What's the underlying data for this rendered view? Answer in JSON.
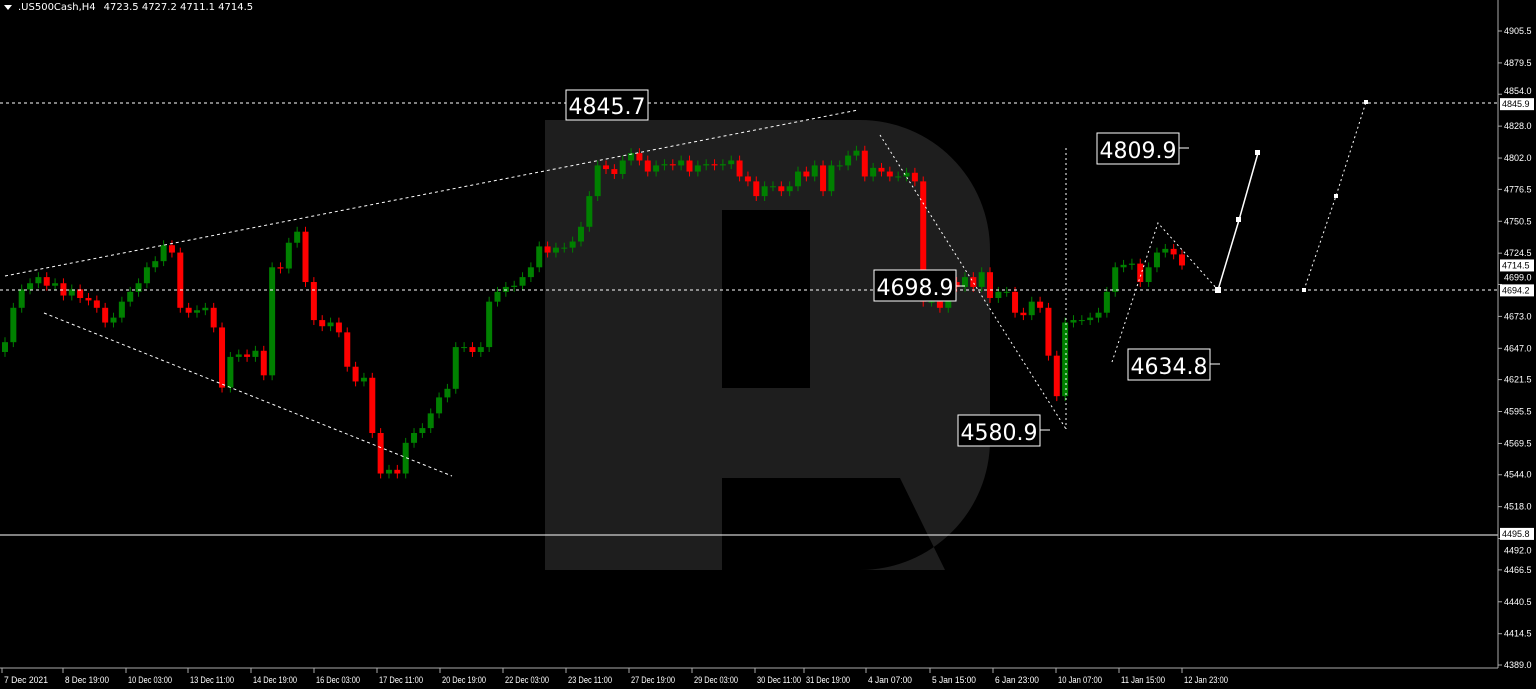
{
  "header": {
    "symbol": ".US500Cash,H4",
    "ohlc": "4723.5 4727.2 4711.1 4714.5"
  },
  "colors": {
    "bull": "#008000",
    "bear": "#ff0000",
    "background": "#000000",
    "watermark": "#1e1e1e",
    "lines": "#ffffff"
  },
  "chart_data": {
    "type": "candlestick",
    "timeframe": "H4",
    "ylim": [
      4389.0,
      4905.5
    ],
    "grid": false,
    "y_ticks": [
      "4905.5",
      "4879.5",
      "4854.0",
      "4828.0",
      "4802.0",
      "4776.5",
      "4750.5",
      "4724.5",
      "4699.0",
      "4673.0",
      "4647.0",
      "4621.5",
      "4595.5",
      "4569.5",
      "4544.0",
      "4518.0",
      "4492.0",
      "4466.5",
      "4440.5",
      "4414.5",
      "4389.0"
    ],
    "x_ticks": [
      "7 Dec 2021",
      "8 Dec 19:00",
      "10 Dec 03:00",
      "13 Dec 11:00",
      "14 Dec 19:00",
      "16 Dec 03:00",
      "17 Dec 11:00",
      "20 Dec 19:00",
      "22 Dec 03:00",
      "23 Dec 11:00",
      "27 Dec 19:00",
      "29 Dec 03:00",
      "30 Dec 11:00",
      "31 Dec 19:00",
      "4 Jan 07:00",
      "5 Jan 15:00",
      "6 Jan 23:00",
      "10 Jan 07:00",
      "11 Jan 15:00",
      "12 Jan 23:00"
    ],
    "closes": [
      4652,
      4680,
      4695,
      4700,
      4705,
      4698,
      4700,
      4690,
      4695,
      4688,
      4686,
      4680,
      4668,
      4672,
      4685,
      4693,
      4700,
      4713,
      4718,
      4731,
      4725,
      4680,
      4676,
      4678,
      4680,
      4664,
      4615,
      4640,
      4642,
      4640,
      4645,
      4625,
      4713,
      4712,
      4733,
      4742,
      4701,
      4670,
      4665,
      4668,
      4660,
      4632,
      4620,
      4623,
      4578,
      4545,
      4548,
      4545,
      4570,
      4578,
      4582,
      4594,
      4607,
      4614,
      4648,
      4648,
      4644,
      4648,
      4685,
      4693,
      4697,
      4698,
      4705,
      4713,
      4730,
      4725,
      4729,
      4729,
      4734,
      4746,
      4771,
      4796,
      4793,
      4789,
      4800,
      4806,
      4800,
      4791,
      4796,
      4797,
      4796,
      4800,
      4791,
      4796,
      4797,
      4796,
      4797,
      4800,
      4787,
      4783,
      4771,
      4779,
      4779,
      4775,
      4779,
      4791,
      4787,
      4796,
      4775,
      4796,
      4796,
      4804,
      4808,
      4787,
      4794,
      4791,
      4787,
      4787,
      4790,
      4783,
      4685,
      4685,
      4680,
      4701,
      4697,
      4705,
      4697,
      4709,
      4688,
      4693,
      4693,
      4676,
      4674,
      4685,
      4680,
      4641,
      4608,
      4668,
      4670,
      4670,
      4672,
      4676,
      4693,
      4713,
      4715,
      4716,
      4701,
      4713,
      4725,
      4728,
      4723.5,
      4714.5
    ],
    "last_candle": {
      "open": 4723.5,
      "high": 4727.2,
      "low": 4711.1,
      "close": 4714.5
    },
    "levels": {
      "resistance": 4845.7,
      "pivot": 4694.2,
      "support": 4495.8
    },
    "annotations": [
      "4845.7",
      "4698.9",
      "4580.9",
      "4809.9",
      "4634.8"
    ],
    "axis_markers": [
      "4845.9",
      "4714.5",
      "4694.2",
      "4495.8"
    ]
  }
}
